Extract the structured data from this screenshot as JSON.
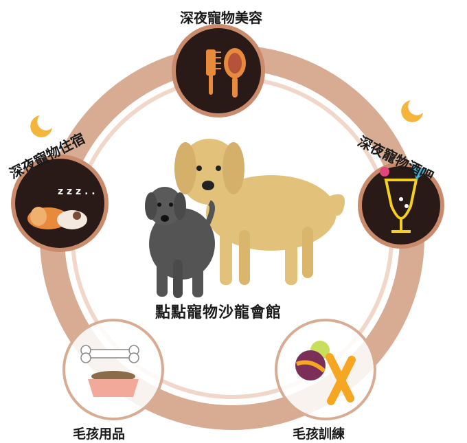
{
  "title": "點點寵物沙龍會館",
  "services": [
    {
      "label": "深夜寵物美容",
      "icon": "comb-and-brush-icon"
    },
    {
      "label": "深夜寵物住宿",
      "icon": "sleeping-dogs-icon"
    },
    {
      "label": "深夜寵物酒吧",
      "icon": "neon-cocktail-icon"
    },
    {
      "label": "毛孩用品",
      "icon": "bone-and-food-bowl-icon"
    },
    {
      "label": "毛孩訓練",
      "icon": "ball-and-toy-bone-icon"
    }
  ],
  "colors": {
    "ring_outer": "#d8ab93",
    "ring_inner": "#f0d7c9",
    "node_dark": "#2a1a17",
    "node_border": "#c98b6c",
    "moon": "#f5b53c",
    "golden_dog": "#e2c27a",
    "black_dog": "#545454"
  }
}
